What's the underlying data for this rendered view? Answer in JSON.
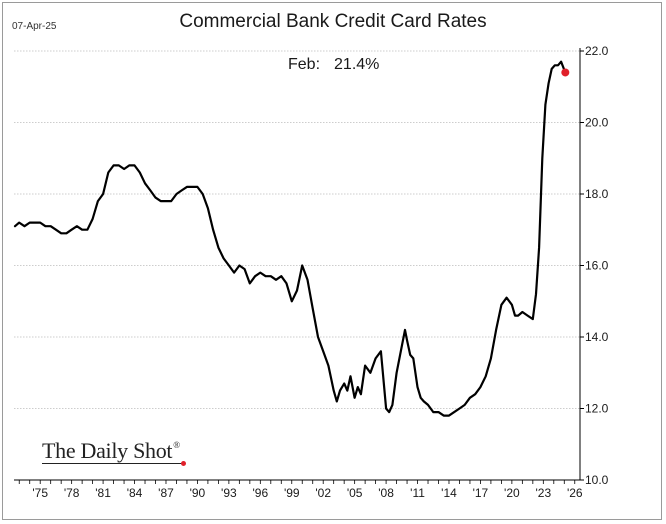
{
  "header": {
    "date_stamp": "07-Apr-25",
    "title": "Commercial Bank Credit Card Rates"
  },
  "annotation": {
    "label": "Feb:",
    "value": "21.4%"
  },
  "brand": {
    "name": "The Daily Shot",
    "mark": "®"
  },
  "colors": {
    "line": "#000000",
    "grid": "#bdbdbd",
    "marker": "#e0202a"
  },
  "chart_data": {
    "type": "line",
    "title": "Commercial Bank Credit Card Rates",
    "xlabel": "",
    "ylabel": "",
    "xlim": [
      1972.5,
      2026.5
    ],
    "ylim": [
      10.0,
      22.0
    ],
    "yticks": [
      "22.0",
      "20.0",
      "18.0",
      "16.0",
      "14.0",
      "12.0",
      "10.0"
    ],
    "ytick_values": [
      22,
      20,
      18,
      16,
      14,
      12,
      10
    ],
    "xticks": [
      "'75",
      "'78",
      "'81",
      "'84",
      "'87",
      "'90",
      "'93",
      "'96",
      "'99",
      "'02",
      "'05",
      "'08",
      "'11",
      "'14",
      "'17",
      "'20",
      "'23",
      "'26"
    ],
    "xtick_values": [
      1975,
      1978,
      1981,
      1984,
      1987,
      1990,
      1993,
      1996,
      1999,
      2002,
      2005,
      2008,
      2011,
      2014,
      2017,
      2020,
      2023,
      2026
    ],
    "grid": "horizontal",
    "y_axis_side": "right",
    "series": [
      {
        "x": [
          1972.6,
          1973.0,
          1973.5,
          1974.0,
          1974.5,
          1975.0,
          1975.5,
          1976.0,
          1976.5,
          1977.0,
          1977.5,
          1978.0,
          1978.5,
          1979.0,
          1979.5,
          1980.0,
          1980.5,
          1981.0,
          1981.5,
          1982.0,
          1982.5,
          1983.0,
          1983.5,
          1984.0,
          1984.5,
          1985.0,
          1985.5,
          1986.0,
          1986.5,
          1987.0,
          1987.5,
          1988.0,
          1988.5,
          1989.0,
          1989.5,
          1990.0,
          1990.5,
          1991.0,
          1991.5,
          1992.0,
          1992.5,
          1993.0,
          1993.5,
          1994.0,
          1994.5,
          1995.0,
          1995.5,
          1996.0,
          1996.5,
          1997.0,
          1997.5,
          1998.0,
          1998.5,
          1999.0,
          1999.5,
          2000.0,
          2000.5,
          2001.0,
          2001.5,
          2002.0,
          2002.5,
          2003.0,
          2003.3,
          2003.6,
          2004.0,
          2004.3,
          2004.6,
          2005.0,
          2005.3,
          2005.6,
          2006.0,
          2006.5,
          2007.0,
          2007.5,
          2008.0,
          2008.3,
          2008.6,
          2009.0,
          2009.4,
          2009.8,
          2010.0,
          2010.3,
          2010.6,
          2011.0,
          2011.3,
          2011.6,
          2012.0,
          2012.5,
          2013.0,
          2013.5,
          2014.0,
          2014.5,
          2015.0,
          2015.5,
          2016.0,
          2016.5,
          2017.0,
          2017.5,
          2018.0,
          2018.5,
          2019.0,
          2019.5,
          2020.0,
          2020.3,
          2020.6,
          2021.0,
          2021.5,
          2022.0,
          2022.3,
          2022.6,
          2022.9,
          2023.2,
          2023.5,
          2023.8,
          2024.1,
          2024.4,
          2024.7,
          2025.1
        ],
        "values": [
          17.1,
          17.2,
          17.1,
          17.2,
          17.2,
          17.2,
          17.1,
          17.1,
          17.0,
          16.9,
          16.9,
          17.0,
          17.1,
          17.0,
          17.0,
          17.3,
          17.8,
          18.0,
          18.6,
          18.8,
          18.8,
          18.7,
          18.8,
          18.8,
          18.6,
          18.3,
          18.1,
          17.9,
          17.8,
          17.8,
          17.8,
          18.0,
          18.1,
          18.2,
          18.2,
          18.2,
          18.0,
          17.6,
          17.0,
          16.5,
          16.2,
          16.0,
          15.8,
          16.0,
          15.9,
          15.5,
          15.7,
          15.8,
          15.7,
          15.7,
          15.6,
          15.7,
          15.5,
          15.0,
          15.3,
          16.0,
          15.6,
          14.8,
          14.0,
          13.6,
          13.2,
          12.5,
          12.2,
          12.5,
          12.7,
          12.5,
          12.9,
          12.3,
          12.6,
          12.4,
          13.2,
          13.0,
          13.4,
          13.6,
          12.0,
          11.9,
          12.1,
          13.0,
          13.6,
          14.2,
          13.9,
          13.5,
          13.4,
          12.6,
          12.3,
          12.2,
          12.1,
          11.9,
          11.9,
          11.8,
          11.8,
          11.9,
          12.0,
          12.1,
          12.3,
          12.4,
          12.6,
          12.9,
          13.4,
          14.2,
          14.9,
          15.1,
          14.9,
          14.6,
          14.6,
          14.7,
          14.6,
          14.5,
          15.2,
          16.5,
          19.0,
          20.5,
          21.1,
          21.5,
          21.6,
          21.6,
          21.7,
          21.4
        ],
        "marker_last": true
      }
    ]
  }
}
